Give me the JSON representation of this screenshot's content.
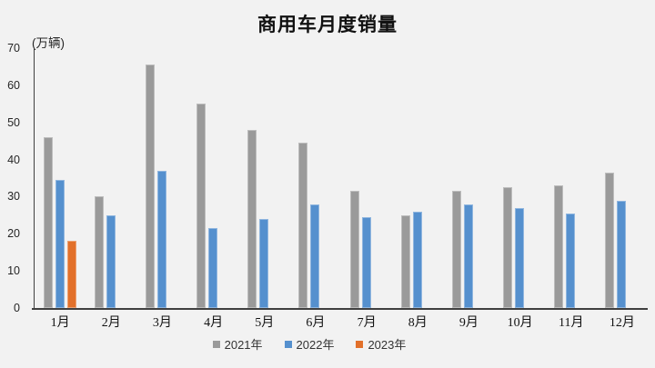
{
  "chart_data": {
    "type": "bar",
    "title": "商用车月度销量",
    "ylabel": "(万辆)",
    "xlabel": "",
    "categories": [
      "1月",
      "2月",
      "3月",
      "4月",
      "5月",
      "6月",
      "7月",
      "8月",
      "9月",
      "10月",
      "11月",
      "12月"
    ],
    "series": [
      {
        "name": "2021年",
        "color": "#9A9A9A",
        "values": [
          46,
          30,
          65.5,
          55,
          48,
          44.5,
          31.5,
          25,
          31.5,
          32.5,
          33,
          36.5
        ]
      },
      {
        "name": "2022年",
        "color": "#5590CE",
        "values": [
          34.5,
          25,
          37,
          21.5,
          24,
          28,
          24.5,
          26,
          28,
          27,
          25.5,
          29
        ]
      },
      {
        "name": "2023年",
        "color": "#E2702A",
        "values": [
          18,
          null,
          null,
          null,
          null,
          null,
          null,
          null,
          null,
          null,
          null,
          null
        ]
      }
    ],
    "ylim": [
      0,
      70
    ],
    "y_ticks": [
      0,
      10,
      20,
      30,
      40,
      50,
      60,
      70
    ],
    "grid": false,
    "legend_position": "bottom",
    "colors": {
      "background": "#F2F2F2",
      "axis": "#404040",
      "title_text": "#111111",
      "tick_text": "#262626",
      "legend_text": "#333333"
    }
  }
}
